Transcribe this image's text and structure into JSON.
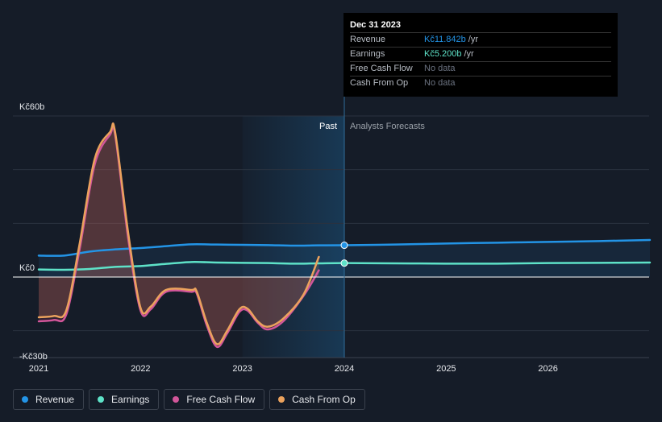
{
  "chart_data": {
    "type": "area",
    "x_axis": {
      "ticks": [
        2021,
        2022,
        2023,
        2024,
        2025,
        2026
      ],
      "tick_labels": [
        "2021",
        "2022",
        "2023",
        "2024",
        "2025",
        "2026"
      ],
      "range": [
        2021.0,
        2027.0
      ]
    },
    "y_axis": {
      "range": [
        -30,
        60
      ],
      "label_values": [
        60,
        0,
        -30
      ],
      "labels": [
        "Kč60b",
        "Kč0",
        "-Kč30b"
      ],
      "gridlines": [
        60,
        40,
        20,
        0,
        -20
      ]
    },
    "past_region": {
      "label": "Past",
      "start": 2023.0,
      "end": 2024.0
    },
    "forecast_region": {
      "label": "Analysts Forecasts"
    },
    "series": [
      {
        "name": "Revenue",
        "color": "#2394e6",
        "points": [
          [
            2021.0,
            8.0
          ],
          [
            2021.25,
            8.0
          ],
          [
            2021.5,
            9.5
          ],
          [
            2021.75,
            10.3
          ],
          [
            2022.0,
            10.8
          ],
          [
            2022.25,
            11.5
          ],
          [
            2022.5,
            12.2
          ],
          [
            2022.75,
            12.1
          ],
          [
            2023.0,
            12.0
          ],
          [
            2023.25,
            11.9
          ],
          [
            2023.5,
            11.7
          ],
          [
            2023.75,
            11.8
          ],
          [
            2024.0,
            11.842
          ],
          [
            2024.5,
            12.1
          ],
          [
            2025.0,
            12.5
          ],
          [
            2025.5,
            12.8
          ],
          [
            2026.0,
            13.1
          ],
          [
            2026.5,
            13.4
          ],
          [
            2027.0,
            13.8
          ]
        ]
      },
      {
        "name": "Earnings",
        "color": "#5ee2c8",
        "points": [
          [
            2021.0,
            2.8
          ],
          [
            2021.25,
            2.7
          ],
          [
            2021.5,
            3.0
          ],
          [
            2021.75,
            3.8
          ],
          [
            2022.0,
            4.1
          ],
          [
            2022.25,
            4.9
          ],
          [
            2022.5,
            5.6
          ],
          [
            2022.75,
            5.4
          ],
          [
            2023.0,
            5.3
          ],
          [
            2023.25,
            5.2
          ],
          [
            2023.5,
            5.0
          ],
          [
            2023.75,
            5.1
          ],
          [
            2024.0,
            5.2
          ],
          [
            2024.5,
            5.1
          ],
          [
            2025.0,
            5.0
          ],
          [
            2025.5,
            5.0
          ],
          [
            2026.0,
            5.2
          ],
          [
            2026.5,
            5.3
          ],
          [
            2027.0,
            5.4
          ]
        ]
      },
      {
        "name": "Free Cash Flow",
        "color": "#d2569a",
        "points": [
          [
            2021.0,
            -16.5
          ],
          [
            2021.15,
            -16.0
          ],
          [
            2021.27,
            -14.0
          ],
          [
            2021.4,
            10.0
          ],
          [
            2021.55,
            42.0
          ],
          [
            2021.7,
            53.0
          ],
          [
            2021.75,
            53.0
          ],
          [
            2021.88,
            14.0
          ],
          [
            2022.0,
            -12.5
          ],
          [
            2022.1,
            -12.0
          ],
          [
            2022.25,
            -5.5
          ],
          [
            2022.5,
            -5.5
          ],
          [
            2022.55,
            -6.0
          ],
          [
            2022.65,
            -18.0
          ],
          [
            2022.75,
            -26.0
          ],
          [
            2022.85,
            -21.0
          ],
          [
            2022.97,
            -13.0
          ],
          [
            2023.05,
            -12.5
          ],
          [
            2023.15,
            -17.0
          ],
          [
            2023.25,
            -19.5
          ],
          [
            2023.4,
            -16.5
          ],
          [
            2023.6,
            -7.0
          ],
          [
            2023.75,
            2.5
          ]
        ]
      },
      {
        "name": "Cash From Op",
        "color": "#eba25d",
        "points": [
          [
            2021.0,
            -15.0
          ],
          [
            2021.15,
            -14.5
          ],
          [
            2021.27,
            -12.5
          ],
          [
            2021.4,
            12.0
          ],
          [
            2021.55,
            44.0
          ],
          [
            2021.7,
            54.0
          ],
          [
            2021.75,
            54.0
          ],
          [
            2021.88,
            16.0
          ],
          [
            2022.0,
            -11.5
          ],
          [
            2022.1,
            -11.0
          ],
          [
            2022.25,
            -4.8
          ],
          [
            2022.5,
            -4.8
          ],
          [
            2022.55,
            -5.3
          ],
          [
            2022.65,
            -17.0
          ],
          [
            2022.75,
            -25.0
          ],
          [
            2022.85,
            -20.0
          ],
          [
            2022.97,
            -12.0
          ],
          [
            2023.05,
            -11.8
          ],
          [
            2023.15,
            -16.5
          ],
          [
            2023.25,
            -18.5
          ],
          [
            2023.4,
            -15.5
          ],
          [
            2023.6,
            -6.5
          ],
          [
            2023.75,
            7.5
          ]
        ]
      }
    ],
    "highlight": {
      "x": 2024.0,
      "series": [
        "Revenue",
        "Earnings"
      ]
    }
  },
  "tooltip": {
    "title": "Dec 31 2023",
    "rows": [
      {
        "label": "Revenue",
        "value": "Kč11.842b",
        "unit": "/yr",
        "color": "#2394e6"
      },
      {
        "label": "Earnings",
        "value": "Kč5.200b",
        "unit": "/yr",
        "color": "#5ee2c8"
      },
      {
        "label": "Free Cash Flow",
        "value": "No data",
        "unit": "",
        "color": "#6b7280"
      },
      {
        "label": "Cash From Op",
        "value": "No data",
        "unit": "",
        "color": "#6b7280"
      }
    ]
  },
  "legend": [
    {
      "label": "Revenue",
      "color": "#2394e6"
    },
    {
      "label": "Earnings",
      "color": "#5ee2c8"
    },
    {
      "label": "Free Cash Flow",
      "color": "#d2569a"
    },
    {
      "label": "Cash From Op",
      "color": "#eba25d"
    }
  ]
}
